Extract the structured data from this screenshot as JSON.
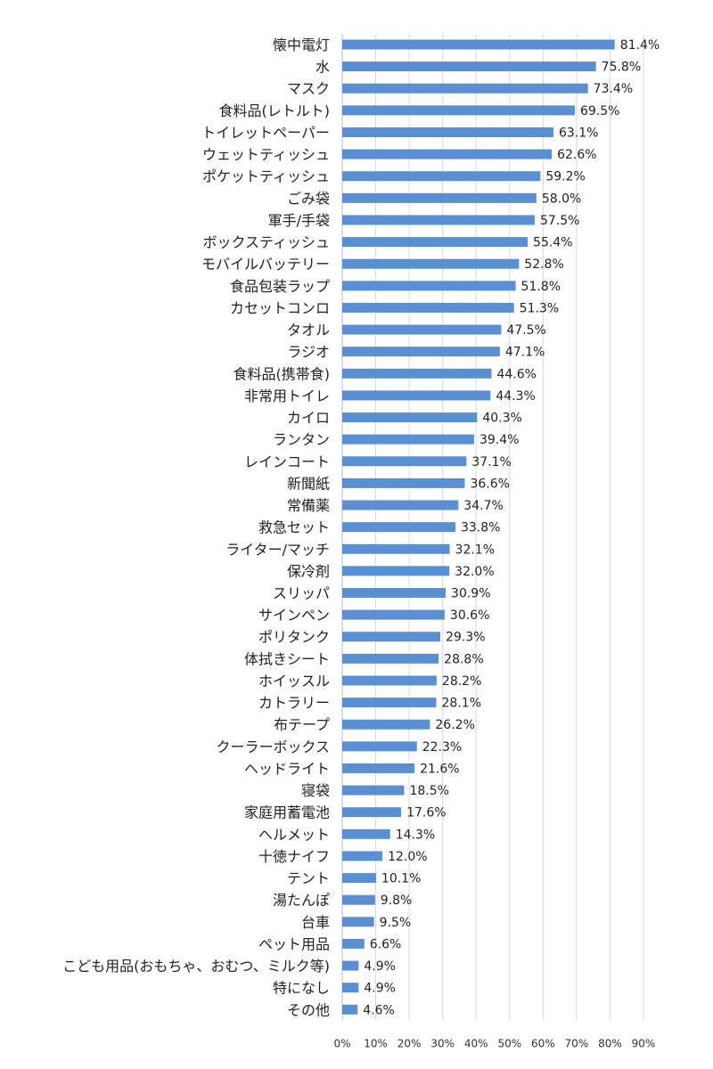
{
  "chart_data": {
    "type": "bar",
    "orientation": "horizontal",
    "title": "",
    "xlabel": "",
    "ylabel": "",
    "xlim": [
      0,
      90
    ],
    "grid": true,
    "legend": "none",
    "bar_color": "#5b8fd4",
    "x_ticks": [
      "0%",
      "10%",
      "20%",
      "30%",
      "40%",
      "50%",
      "60%",
      "70%",
      "80%",
      "90%"
    ],
    "categories": [
      "懐中電灯",
      "水",
      "マスク",
      "食料品(レトルト)",
      "トイレットペーパー",
      "ウェットティッシュ",
      "ポケットティッシュ",
      "ごみ袋",
      "軍手/手袋",
      "ボックスティッシュ",
      "モバイルバッテリー",
      "食品包装ラップ",
      "カセットコンロ",
      "タオル",
      "ラジオ",
      "食料品(携帯食)",
      "非常用トイレ",
      "カイロ",
      "ランタン",
      "レインコート",
      "新聞紙",
      "常備薬",
      "救急セット",
      "ライター/マッチ",
      "保冷剤",
      "スリッパ",
      "サインペン",
      "ポリタンク",
      "体拭きシート",
      "ホイッスル",
      "カトラリー",
      "布テープ",
      "クーラーボックス",
      "ヘッドライト",
      "寝袋",
      "家庭用蓄電池",
      "ヘルメット",
      "十徳ナイフ",
      "テント",
      "湯たんぽ",
      "台車",
      "ペット用品",
      "こども用品(おもちゃ、おむつ、ミルク等)",
      "特になし",
      "その他"
    ],
    "values": [
      81.4,
      75.8,
      73.4,
      69.5,
      63.1,
      62.6,
      59.2,
      58.0,
      57.5,
      55.4,
      52.8,
      51.8,
      51.3,
      47.5,
      47.1,
      44.6,
      44.3,
      40.3,
      39.4,
      37.1,
      36.6,
      34.7,
      33.8,
      32.1,
      32.0,
      30.9,
      30.6,
      29.3,
      28.8,
      28.2,
      28.1,
      26.2,
      22.3,
      21.6,
      18.5,
      17.6,
      14.3,
      12.0,
      10.1,
      9.8,
      9.5,
      6.6,
      4.9,
      4.9,
      4.6
    ],
    "value_labels": [
      "81.4%",
      "75.8%",
      "73.4%",
      "69.5%",
      "63.1%",
      "62.6%",
      "59.2%",
      "58.0%",
      "57.5%",
      "55.4%",
      "52.8%",
      "51.8%",
      "51.3%",
      "47.5%",
      "47.1%",
      "44.6%",
      "44.3%",
      "40.3%",
      "39.4%",
      "37.1%",
      "36.6%",
      "34.7%",
      "33.8%",
      "32.1%",
      "32.0%",
      "30.9%",
      "30.6%",
      "29.3%",
      "28.8%",
      "28.2%",
      "28.1%",
      "26.2%",
      "22.3%",
      "21.6%",
      "18.5%",
      "17.6%",
      "14.3%",
      "12.0%",
      "10.1%",
      "9.8%",
      "9.5%",
      "6.6%",
      "4.9%",
      "4.9%",
      "4.6%"
    ]
  }
}
